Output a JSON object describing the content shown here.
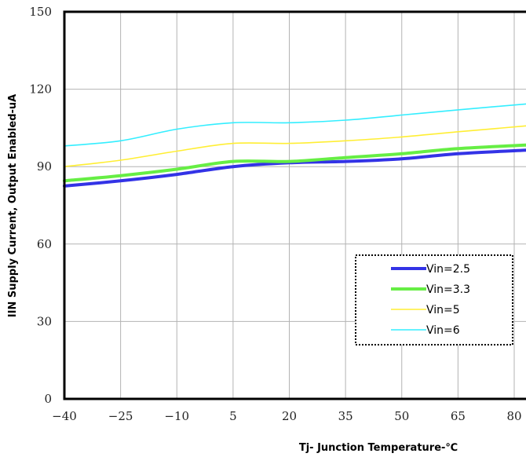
{
  "chart_data": {
    "type": "line",
    "title": "",
    "xlabel": "Tj- Junction Temperature-℃",
    "ylabel": "IIN Supply Current, Output Enabled-uA",
    "xlim": [
      -40,
      85
    ],
    "ylim": [
      0,
      150
    ],
    "x_ticks": [
      -40,
      -25,
      -10,
      5,
      20,
      35,
      50,
      65,
      80
    ],
    "y_ticks": [
      0,
      30,
      60,
      90,
      120,
      150
    ],
    "x_tick_labels": [
      "−40",
      "−25",
      "−10",
      "5",
      "20",
      "35",
      "50",
      "65",
      "80"
    ],
    "y_tick_labels": [
      "0",
      "30",
      "60",
      "90",
      "120",
      "150"
    ],
    "grid": true,
    "legend_position": "lower-right",
    "x": [
      -40,
      -25,
      -10,
      5,
      20,
      35,
      50,
      65,
      85
    ],
    "series": [
      {
        "name": "Vin=2.5",
        "color": "#3333e6",
        "values": [
          82.5,
          84.5,
          87,
          90,
          91.5,
          92,
          93,
          95,
          96.5
        ]
      },
      {
        "name": "Vin=3.3",
        "color": "#66ee44",
        "values": [
          84.5,
          86.5,
          89,
          92,
          92,
          93.5,
          95,
          97,
          98.5
        ]
      },
      {
        "name": "Vin=5",
        "color": "#ffee33",
        "values": [
          90,
          92.5,
          96,
          99,
          99,
          100,
          101.5,
          103.5,
          106
        ]
      },
      {
        "name": "Vin=6",
        "color": "#33eeff",
        "values": [
          98,
          100,
          104.5,
          107,
          107,
          108,
          110,
          112,
          114.5
        ]
      }
    ]
  }
}
